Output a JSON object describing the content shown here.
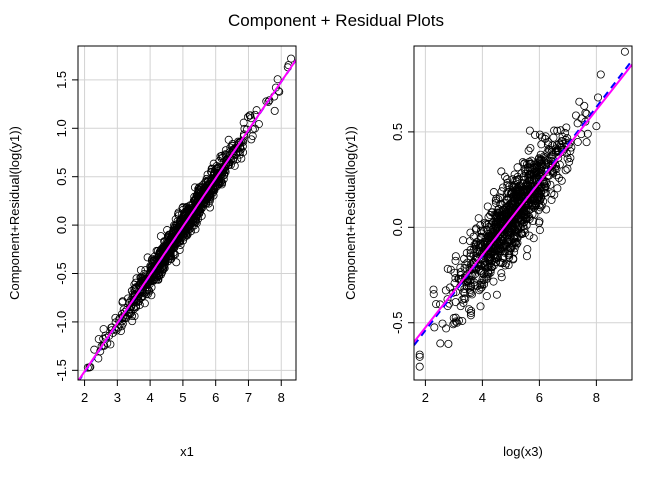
{
  "figure": {
    "title": "Component + Residual Plots"
  },
  "chart_data": [
    {
      "type": "scatter",
      "title": "",
      "xlabel": "x1",
      "ylabel": "Component+Residual(log(y1))",
      "xlim": [
        1.8,
        8.45
      ],
      "ylim": [
        -1.6,
        1.85
      ],
      "xticks": [
        2,
        3,
        4,
        5,
        6,
        7,
        8
      ],
      "yticks": [
        -1.5,
        -1.0,
        -0.5,
        0.0,
        0.5,
        1.0,
        1.5
      ],
      "ytick_labels": [
        "-1.5",
        "-1.0",
        "-0.5",
        "0.0",
        "0.5",
        "1.0",
        "1.5"
      ],
      "grid": true,
      "point_count": 1000,
      "point_center_x": 5.0,
      "point_spread_x": 1.0,
      "x_range_observed": [
        2.1,
        8.3
      ],
      "residual_sd": 0.08,
      "outlier_points": [
        {
          "x": 8.3,
          "y": 1.72
        },
        {
          "x": 8.2,
          "y": 1.63
        },
        {
          "x": 7.8,
          "y": 1.18
        },
        {
          "x": 2.15,
          "y": -1.47
        }
      ],
      "series": [
        {
          "name": "",
          "kind": "linear-fit",
          "style": "dashed",
          "color": "#0000ff",
          "intercept": -2.52,
          "slope": 0.5
        },
        {
          "name": "",
          "kind": "smoother",
          "style": "solid",
          "color": "#ff00ff",
          "intercept": -2.51,
          "slope": 0.499
        }
      ],
      "colors": {
        "points": "#000000",
        "fit": "#0000ff",
        "smooth": "#ff00ff",
        "grid": "#d3d3d3"
      }
    },
    {
      "type": "scatter",
      "title": "",
      "xlabel": "log(x3)",
      "ylabel": "Component+Residual(log(y1))",
      "xlim": [
        1.6,
        9.25
      ],
      "ylim": [
        -0.8,
        0.95
      ],
      "xticks": [
        2,
        4,
        6,
        8
      ],
      "yticks": [
        -0.5,
        0.0,
        0.5
      ],
      "ytick_labels": [
        "-0.5",
        "0.0",
        "0.5"
      ],
      "grid": true,
      "point_count": 1000,
      "point_center_x": 5.0,
      "point_spread_x": 1.0,
      "x_range_observed": [
        1.8,
        9.0
      ],
      "residual_sd": 0.1,
      "outlier_points": [
        {
          "x": 9.0,
          "y": 0.92
        },
        {
          "x": 1.8,
          "y": -0.73
        },
        {
          "x": 8.0,
          "y": 0.53
        }
      ],
      "series": [
        {
          "name": "",
          "kind": "linear-fit",
          "style": "dashed",
          "color": "#0000ff",
          "intercept": -0.93,
          "slope": 0.195
        },
        {
          "name": "",
          "kind": "smoother",
          "style": "solid",
          "color": "#ff00ff",
          "intercept": -0.905,
          "slope": 0.19
        }
      ],
      "colors": {
        "points": "#000000",
        "fit": "#0000ff",
        "smooth": "#ff00ff",
        "grid": "#d3d3d3"
      }
    }
  ]
}
